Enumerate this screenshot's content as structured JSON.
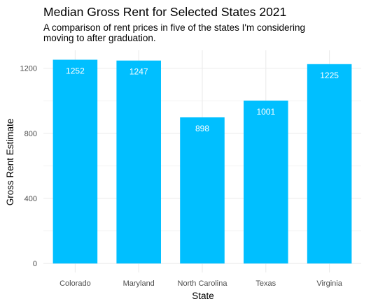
{
  "chart_data": {
    "type": "bar",
    "title": "Median Gross Rent for Selected States 2021",
    "subtitle": "A comparison of rent prices in five of the states I'm considering moving to after graduation.",
    "xlabel": "State",
    "ylabel": "Gross Rent Estimate",
    "categories": [
      "Colorado",
      "Maryland",
      "North Carolina",
      "Texas",
      "Virginia"
    ],
    "values": [
      1252,
      1247,
      898,
      1001,
      1225
    ],
    "value_labels": [
      "1252",
      "1247",
      "898",
      "1001",
      "1225"
    ],
    "ylim": [
      -55,
      1310
    ],
    "yticks": [
      0,
      400,
      800,
      1200
    ],
    "ytick_labels": [
      "0",
      "400",
      "800",
      "1200"
    ],
    "bar_color": "#00BFFF",
    "grid": true,
    "grid_color": "#EBEBEB",
    "legend": "none"
  }
}
